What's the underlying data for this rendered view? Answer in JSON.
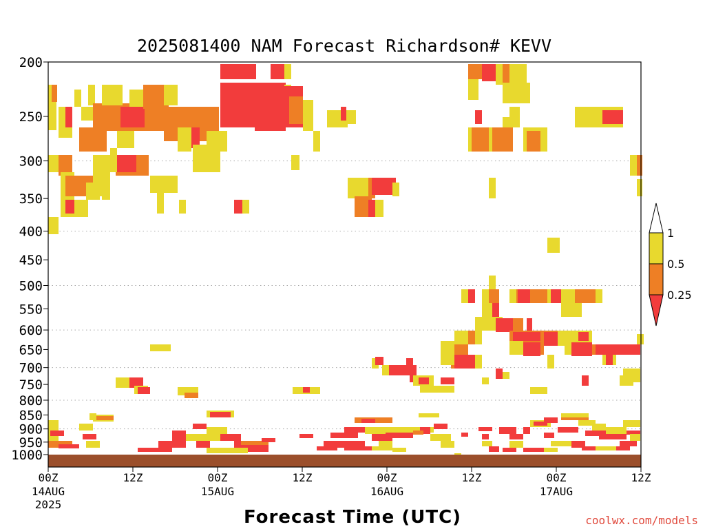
{
  "chart_data": {
    "type": "heatmap",
    "title": "2025081400 NAM Forecast Richardson# KEVV",
    "xlabel": "Forecast Time (UTC)",
    "ylabel": "",
    "y_scale": "log",
    "y_ticks": [
      "200",
      "250",
      "300",
      "350",
      "400",
      "450",
      "500",
      "550",
      "600",
      "650",
      "700",
      "750",
      "800",
      "850",
      "900",
      "950",
      "1000"
    ],
    "y_gridlines": [
      "300",
      "400",
      "500",
      "600",
      "700",
      "800",
      "900"
    ],
    "x_ticks": [
      {
        "hour": "00Z",
        "date": "14AUG",
        "year": "2025"
      },
      {
        "hour": "12Z",
        "date": "",
        "year": ""
      },
      {
        "hour": "00Z",
        "date": "15AUG",
        "year": ""
      },
      {
        "hour": "12Z",
        "date": "",
        "year": ""
      },
      {
        "hour": "00Z",
        "date": "16AUG",
        "year": ""
      },
      {
        "hour": "12Z",
        "date": "",
        "year": ""
      },
      {
        "hour": "00Z",
        "date": "17AUG",
        "year": ""
      },
      {
        "hour": "12Z",
        "date": "",
        "year": ""
      }
    ],
    "legend": {
      "labels": [
        "1",
        "0.5",
        "0.25"
      ],
      "levels": [
        0.25,
        0.5,
        1
      ],
      "colors": {
        "lt_025": "#f23c3c",
        "025_05": "#ee7f25",
        "05_1": "#e8d92e",
        "gt_1": "#ffffff"
      }
    },
    "ground_color": "#9b4f2b",
    "grid_on": true,
    "legend_position": "right"
  },
  "credit": "coolwx.com/models"
}
